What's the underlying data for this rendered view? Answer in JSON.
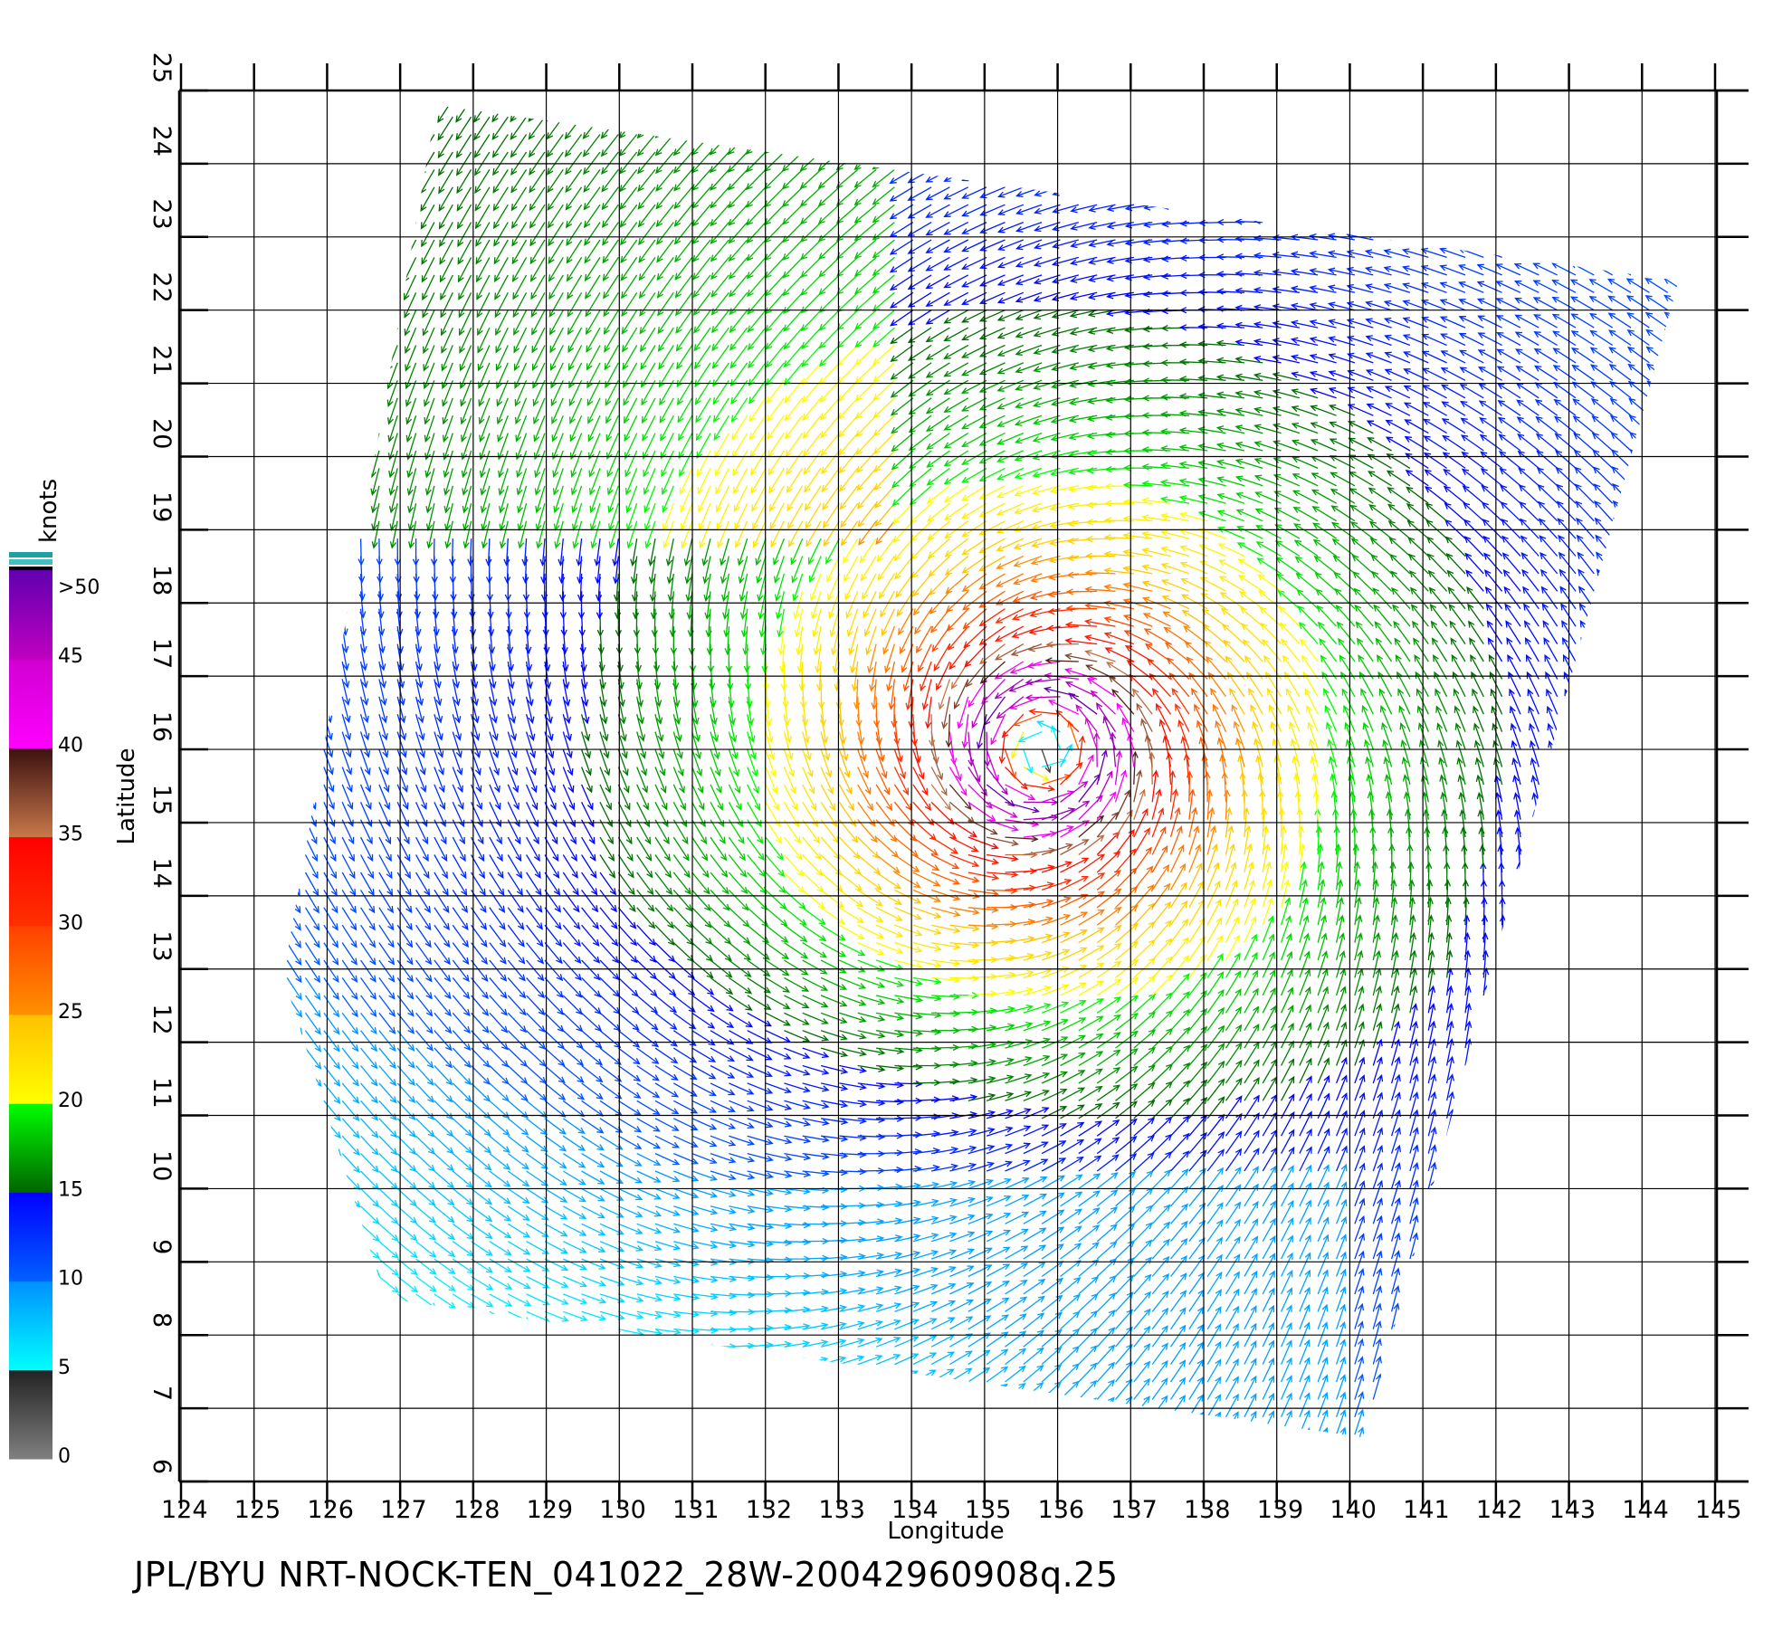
{
  "caption": "JPL/BYU  NRT-NOCK-TEN_041022_28W-20042960908q.25",
  "chart_data": {
    "type": "vector_field",
    "xlabel": "Longitude",
    "ylabel": "Latitude",
    "xlim": [
      124,
      145
    ],
    "ylim": [
      6,
      25
    ],
    "xticks": [
      "124",
      "125",
      "126",
      "127",
      "128",
      "129",
      "130",
      "131",
      "132",
      "133",
      "134",
      "135",
      "136",
      "137",
      "138",
      "139",
      "140",
      "141",
      "142",
      "143",
      "144",
      "145"
    ],
    "yticks": [
      "6",
      "7",
      "8",
      "9",
      "10",
      "11",
      "12",
      "13",
      "14",
      "15",
      "16",
      "17",
      "18",
      "19",
      "20",
      "21",
      "22",
      "23",
      "24",
      "25"
    ],
    "grid": true,
    "cyclone_center": {
      "lon": 135.8,
      "lat": 16.0
    },
    "swath_corners": [
      {
        "lon": 127.5,
        "lat": 24.8
      },
      {
        "lon": 144.5,
        "lat": 22.4
      },
      {
        "lon": 140.2,
        "lat": 6.6
      },
      {
        "lon": 126.8,
        "lat": 8.5
      },
      {
        "lon": 125.4,
        "lat": 12.9
      }
    ],
    "colorbar": {
      "unit": "knots",
      "ticks": [
        "0",
        "5",
        "10",
        "15",
        "20",
        "25",
        "30",
        "35",
        "40",
        "45",
        ">50"
      ],
      "bands": [
        {
          "from": 0,
          "to": 5,
          "colors": [
            "#808080",
            "#222222"
          ]
        },
        {
          "from": 5,
          "to": 10,
          "colors": [
            "#00ffff",
            "#0090ff"
          ]
        },
        {
          "from": 10,
          "to": 15,
          "colors": [
            "#0060ff",
            "#0000ff"
          ]
        },
        {
          "from": 15,
          "to": 20,
          "colors": [
            "#006400",
            "#00ff00"
          ]
        },
        {
          "from": 20,
          "to": 25,
          "colors": [
            "#ffff00",
            "#ffc000"
          ]
        },
        {
          "from": 25,
          "to": 30,
          "colors": [
            "#ff9000",
            "#ff4000"
          ]
        },
        {
          "from": 30,
          "to": 35,
          "colors": [
            "#ff3000",
            "#ff0000"
          ]
        },
        {
          "from": 35,
          "to": 40,
          "colors": [
            "#c8784a",
            "#3a1010"
          ]
        },
        {
          "from": 40,
          "to": 45,
          "colors": [
            "#ff00ff",
            "#d000d0"
          ]
        },
        {
          "from": 45,
          "to": 50,
          "colors": [
            "#c000c0",
            "#6000b0"
          ]
        }
      ]
    }
  }
}
